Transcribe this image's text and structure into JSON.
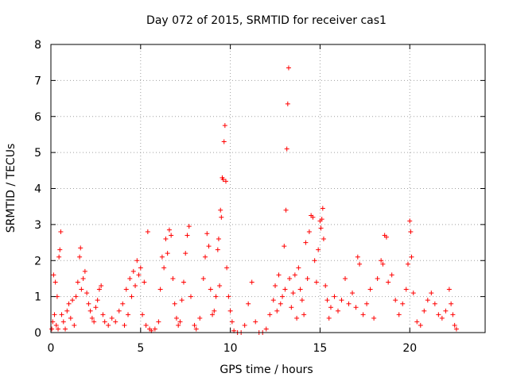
{
  "chart_data": {
    "type": "scatter",
    "title": "Day 072 of 2015, SRMTID for receiver cas1",
    "xlabel": "GPS time / hours",
    "ylabel": "SRMTID / TECUs",
    "xlim": [
      0,
      24.2
    ],
    "ylim": [
      0,
      8
    ],
    "xticks": [
      0,
      5,
      10,
      15,
      20
    ],
    "yticks": [
      0,
      1,
      2,
      3,
      4,
      5,
      6,
      7,
      8
    ],
    "grid": true,
    "marker": "+",
    "series": [
      {
        "name": "SRMTID",
        "color": "#ff0000",
        "points": [
          [
            0.05,
            0.1
          ],
          [
            0.1,
            0.3
          ],
          [
            0.15,
            1.6
          ],
          [
            0.2,
            0.5
          ],
          [
            0.25,
            1.4
          ],
          [
            0.3,
            0.2
          ],
          [
            0.35,
            1.0
          ],
          [
            0.4,
            0.1
          ],
          [
            0.45,
            2.1
          ],
          [
            0.5,
            2.3
          ],
          [
            0.55,
            2.8
          ],
          [
            0.6,
            0.5
          ],
          [
            0.7,
            0.3
          ],
          [
            0.8,
            0.1
          ],
          [
            0.9,
            0.6
          ],
          [
            1.0,
            0.8
          ],
          [
            1.1,
            0.4
          ],
          [
            1.2,
            0.9
          ],
          [
            1.3,
            0.2
          ],
          [
            1.4,
            1.0
          ],
          [
            1.5,
            1.4
          ],
          [
            1.6,
            2.1
          ],
          [
            1.65,
            2.35
          ],
          [
            1.7,
            1.2
          ],
          [
            1.8,
            1.5
          ],
          [
            1.9,
            1.7
          ],
          [
            2.0,
            1.1
          ],
          [
            2.1,
            0.8
          ],
          [
            2.2,
            0.6
          ],
          [
            2.3,
            0.4
          ],
          [
            2.4,
            0.3
          ],
          [
            2.5,
            0.7
          ],
          [
            2.6,
            0.9
          ],
          [
            2.7,
            1.2
          ],
          [
            2.8,
            1.3
          ],
          [
            2.9,
            0.5
          ],
          [
            3.0,
            0.3
          ],
          [
            3.2,
            0.2
          ],
          [
            3.4,
            0.4
          ],
          [
            3.6,
            0.3
          ],
          [
            3.8,
            0.6
          ],
          [
            4.0,
            0.8
          ],
          [
            4.1,
            0.2
          ],
          [
            4.2,
            1.2
          ],
          [
            4.3,
            0.5
          ],
          [
            4.4,
            1.5
          ],
          [
            4.5,
            1.0
          ],
          [
            4.6,
            1.7
          ],
          [
            4.7,
            1.3
          ],
          [
            4.8,
            2.0
          ],
          [
            4.9,
            1.6
          ],
          [
            5.0,
            1.8
          ],
          [
            5.1,
            0.5
          ],
          [
            5.2,
            1.4
          ],
          [
            5.3,
            0.2
          ],
          [
            5.4,
            2.8
          ],
          [
            5.5,
            0.1
          ],
          [
            5.6,
            0.05
          ],
          [
            5.8,
            0.1
          ],
          [
            6.0,
            0.3
          ],
          [
            6.1,
            1.2
          ],
          [
            6.2,
            2.1
          ],
          [
            6.3,
            1.8
          ],
          [
            6.4,
            2.6
          ],
          [
            6.5,
            2.2
          ],
          [
            6.6,
            2.85
          ],
          [
            6.7,
            2.7
          ],
          [
            6.8,
            1.5
          ],
          [
            6.9,
            0.8
          ],
          [
            7.0,
            0.4
          ],
          [
            7.1,
            0.2
          ],
          [
            7.2,
            0.3
          ],
          [
            7.3,
            0.9
          ],
          [
            7.4,
            1.4
          ],
          [
            7.5,
            2.2
          ],
          [
            7.6,
            2.7
          ],
          [
            7.7,
            2.95
          ],
          [
            7.8,
            1.0
          ],
          [
            8.0,
            0.2
          ],
          [
            8.1,
            0.1
          ],
          [
            8.3,
            0.4
          ],
          [
            8.5,
            1.5
          ],
          [
            8.6,
            2.1
          ],
          [
            8.7,
            2.75
          ],
          [
            8.8,
            2.4
          ],
          [
            8.9,
            1.2
          ],
          [
            9.0,
            0.5
          ],
          [
            9.1,
            0.6
          ],
          [
            9.2,
            1.0
          ],
          [
            9.3,
            2.3
          ],
          [
            9.35,
            2.6
          ],
          [
            9.4,
            1.3
          ],
          [
            9.45,
            3.4
          ],
          [
            9.5,
            3.2
          ],
          [
            9.55,
            4.3
          ],
          [
            9.6,
            4.25
          ],
          [
            9.65,
            5.3
          ],
          [
            9.7,
            5.75
          ],
          [
            9.75,
            4.2
          ],
          [
            9.8,
            1.8
          ],
          [
            9.9,
            1.0
          ],
          [
            10.0,
            0.6
          ],
          [
            10.1,
            0.3
          ],
          [
            10.2,
            0.05
          ],
          [
            10.4,
            0.0
          ],
          [
            10.6,
            0.0
          ],
          [
            10.8,
            0.2
          ],
          [
            11.0,
            0.8
          ],
          [
            11.2,
            1.4
          ],
          [
            11.4,
            0.3
          ],
          [
            11.6,
            0.0
          ],
          [
            11.8,
            0.0
          ],
          [
            12.0,
            0.1
          ],
          [
            12.2,
            0.5
          ],
          [
            12.4,
            0.9
          ],
          [
            12.5,
            1.3
          ],
          [
            12.6,
            0.6
          ],
          [
            12.7,
            1.6
          ],
          [
            12.8,
            0.8
          ],
          [
            12.9,
            1.0
          ],
          [
            13.0,
            2.4
          ],
          [
            13.05,
            1.2
          ],
          [
            13.1,
            3.4
          ],
          [
            13.15,
            5.1
          ],
          [
            13.2,
            6.35
          ],
          [
            13.25,
            7.35
          ],
          [
            13.3,
            1.5
          ],
          [
            13.4,
            0.7
          ],
          [
            13.5,
            1.1
          ],
          [
            13.6,
            1.6
          ],
          [
            13.7,
            0.4
          ],
          [
            13.8,
            1.8
          ],
          [
            13.9,
            1.2
          ],
          [
            14.0,
            0.9
          ],
          [
            14.1,
            0.5
          ],
          [
            14.2,
            2.5
          ],
          [
            14.3,
            1.5
          ],
          [
            14.4,
            2.8
          ],
          [
            14.5,
            3.25
          ],
          [
            14.6,
            3.2
          ],
          [
            14.7,
            2.0
          ],
          [
            14.8,
            1.4
          ],
          [
            14.9,
            2.3
          ],
          [
            15.0,
            3.1
          ],
          [
            15.05,
            2.9
          ],
          [
            15.1,
            3.15
          ],
          [
            15.15,
            3.45
          ],
          [
            15.2,
            2.6
          ],
          [
            15.3,
            1.3
          ],
          [
            15.4,
            0.9
          ],
          [
            15.5,
            0.4
          ],
          [
            15.6,
            0.7
          ],
          [
            15.8,
            1.0
          ],
          [
            16.0,
            0.6
          ],
          [
            16.2,
            0.9
          ],
          [
            16.4,
            1.5
          ],
          [
            16.6,
            0.8
          ],
          [
            16.8,
            1.1
          ],
          [
            17.0,
            0.7
          ],
          [
            17.1,
            2.1
          ],
          [
            17.2,
            1.9
          ],
          [
            17.4,
            0.5
          ],
          [
            17.6,
            0.8
          ],
          [
            17.8,
            1.2
          ],
          [
            18.0,
            0.4
          ],
          [
            18.2,
            1.5
          ],
          [
            18.4,
            2.0
          ],
          [
            18.5,
            1.9
          ],
          [
            18.6,
            2.7
          ],
          [
            18.7,
            2.65
          ],
          [
            18.8,
            1.4
          ],
          [
            19.0,
            1.6
          ],
          [
            19.2,
            0.9
          ],
          [
            19.4,
            0.5
          ],
          [
            19.6,
            0.8
          ],
          [
            19.8,
            1.2
          ],
          [
            19.9,
            1.9
          ],
          [
            20.0,
            3.1
          ],
          [
            20.05,
            2.8
          ],
          [
            20.1,
            2.1
          ],
          [
            20.2,
            1.1
          ],
          [
            20.4,
            0.3
          ],
          [
            20.6,
            0.2
          ],
          [
            20.8,
            0.6
          ],
          [
            21.0,
            0.9
          ],
          [
            21.2,
            1.1
          ],
          [
            21.4,
            0.8
          ],
          [
            21.6,
            0.5
          ],
          [
            21.8,
            0.4
          ],
          [
            22.0,
            0.6
          ],
          [
            22.2,
            1.2
          ],
          [
            22.3,
            0.8
          ],
          [
            22.4,
            0.5
          ],
          [
            22.5,
            0.2
          ],
          [
            22.6,
            0.1
          ]
        ]
      }
    ]
  }
}
